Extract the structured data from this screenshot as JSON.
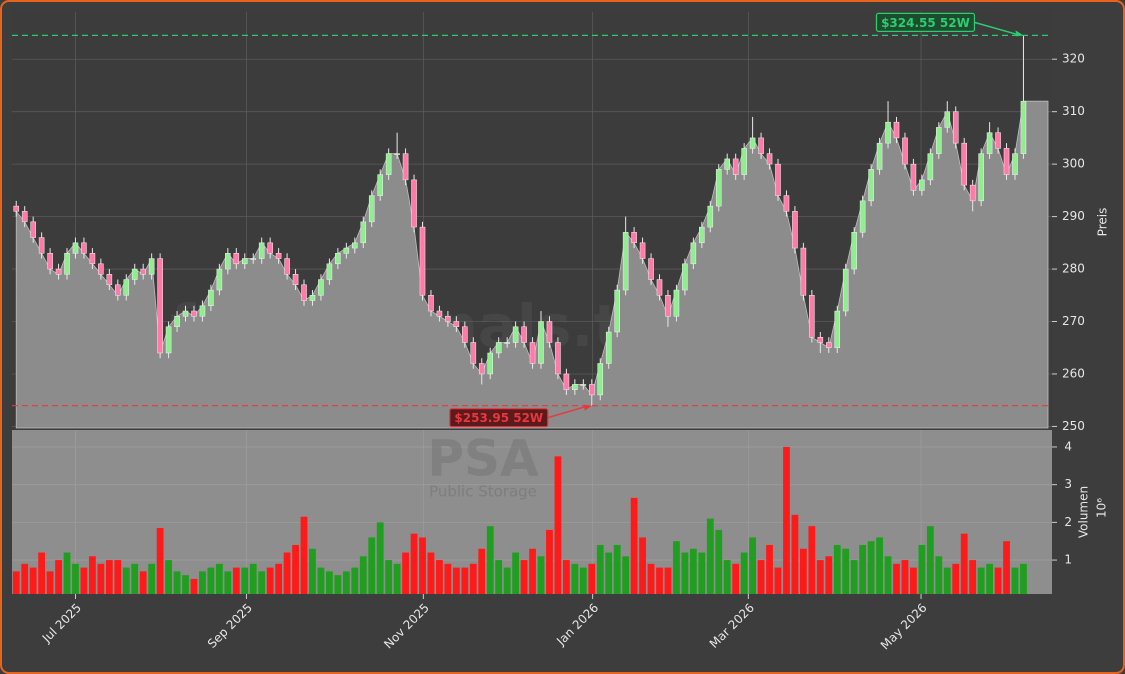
{
  "watermark": {
    "site": "forexsignals.trade",
    "ticker": "PSA",
    "company": "Public Storage"
  },
  "chart_data": [
    {
      "type": "candlestick",
      "y_label": "Preis",
      "up_color": "#90ee90",
      "down_color": "#ff7aa8",
      "area_color": "#8c8c8c",
      "xlim": [
        -0.5,
        121.9
      ],
      "xticks": [
        {
          "value": 7.0,
          "label": "Jul 2025"
        },
        {
          "value": 27.2,
          "label": "Sep 2025"
        },
        {
          "value": 48.1,
          "label": "Nov 2025"
        },
        {
          "value": 68.1,
          "label": "Jan 2026"
        },
        {
          "value": 86.5,
          "label": "Mar 2026"
        },
        {
          "value": 106.9,
          "label": "May 2026"
        }
      ],
      "ylim": [
        249.7,
        329
      ],
      "yticks": [
        250,
        260,
        270,
        280,
        290,
        300,
        310,
        320
      ],
      "grid": true,
      "open": [
        292,
        291,
        289,
        286,
        283,
        280,
        279,
        283,
        285,
        283,
        281,
        279,
        277,
        275,
        278,
        280,
        279,
        282,
        264,
        269,
        271,
        272,
        271,
        273,
        276,
        280,
        283,
        281,
        282,
        282,
        285,
        283,
        282,
        279,
        277,
        274,
        275,
        278,
        281,
        283,
        284,
        285,
        289,
        294,
        298,
        302,
        302,
        297,
        288,
        275,
        272,
        271,
        270,
        269,
        266,
        262,
        260,
        264,
        266,
        266,
        269,
        266,
        262,
        270,
        266,
        260,
        257,
        258,
        258,
        256,
        262,
        268,
        276,
        287,
        285,
        282,
        278,
        275,
        271,
        276,
        281,
        285,
        288,
        292,
        299,
        301,
        298,
        303,
        305,
        302,
        300,
        294,
        291,
        284,
        275,
        267,
        266,
        265,
        272,
        280,
        287,
        293,
        299,
        304,
        308,
        305,
        300,
        295,
        297,
        302,
        307,
        310,
        304,
        296,
        293,
        302,
        306,
        303,
        298,
        302
      ],
      "high": [
        293,
        292,
        290,
        287,
        284,
        281,
        284,
        286,
        286,
        284,
        282,
        280,
        278,
        279,
        281,
        281,
        283,
        283,
        270,
        272,
        273,
        273,
        274,
        277,
        281,
        284,
        284,
        283,
        283,
        286,
        286,
        284,
        283,
        280,
        278,
        276,
        279,
        282,
        284,
        285,
        286,
        290,
        295,
        299,
        303,
        306,
        303,
        298,
        289,
        276,
        273,
        272,
        271,
        270,
        267,
        263,
        265,
        267,
        267,
        270,
        270,
        267,
        272,
        271,
        267,
        261,
        259,
        259,
        259,
        263,
        269,
        277,
        290,
        288,
        286,
        283,
        279,
        276,
        277,
        282,
        286,
        289,
        293,
        300,
        302,
        302,
        304,
        309,
        306,
        303,
        301,
        295,
        292,
        285,
        276,
        268,
        267,
        273,
        281,
        288,
        294,
        300,
        305,
        312,
        309,
        306,
        301,
        298,
        303,
        308,
        312,
        311,
        305,
        297,
        303,
        308,
        307,
        304,
        303,
        324.55
      ],
      "low": [
        290,
        288,
        285,
        282,
        279,
        278,
        278,
        282,
        282,
        280,
        278,
        276,
        274,
        274,
        277,
        278,
        278,
        263,
        263,
        268,
        270,
        270,
        270,
        272,
        275,
        279,
        280,
        280,
        281,
        281,
        282,
        281,
        278,
        276,
        273,
        273,
        274,
        277,
        280,
        282,
        283,
        284,
        288,
        293,
        297,
        301,
        296,
        287,
        274,
        271,
        270,
        269,
        268,
        265,
        261,
        258,
        259,
        263,
        265,
        265,
        265,
        261,
        261,
        265,
        259,
        256,
        256,
        257,
        253.95,
        255,
        261,
        267,
        275,
        284,
        281,
        277,
        274,
        269,
        270,
        275,
        280,
        284,
        287,
        291,
        298,
        297,
        297,
        302,
        301,
        299,
        293,
        290,
        283,
        274,
        266,
        264,
        264,
        264,
        271,
        279,
        286,
        292,
        298,
        303,
        304,
        299,
        294,
        294,
        296,
        301,
        306,
        303,
        295,
        291,
        292,
        301,
        302,
        297,
        297,
        301
      ],
      "close": [
        291,
        289,
        286,
        283,
        280,
        279,
        283,
        285,
        283,
        281,
        279,
        277,
        275,
        278,
        280,
        279,
        282,
        264,
        269,
        271,
        272,
        271,
        273,
        276,
        280,
        283,
        281,
        282,
        282,
        285,
        283,
        282,
        279,
        277,
        274,
        275,
        278,
        281,
        283,
        284,
        285,
        289,
        294,
        298,
        302,
        302,
        297,
        288,
        275,
        272,
        271,
        270,
        269,
        266,
        262,
        260,
        264,
        266,
        266,
        269,
        266,
        262,
        270,
        266,
        260,
        257,
        258,
        258,
        256,
        262,
        268,
        276,
        287,
        285,
        282,
        278,
        275,
        271,
        276,
        281,
        285,
        288,
        292,
        299,
        301,
        298,
        303,
        305,
        302,
        300,
        294,
        291,
        284,
        275,
        267,
        266,
        265,
        272,
        280,
        287,
        293,
        299,
        304,
        308,
        305,
        300,
        295,
        297,
        302,
        307,
        310,
        304,
        296,
        293,
        302,
        306,
        303,
        298,
        302,
        312
      ],
      "annotations": [
        {
          "x": 119,
          "value": 324.55,
          "label": "$324.55 52W",
          "color": "#2ecc71"
        },
        {
          "x": 68,
          "value": 253.95,
          "label": "$253.95 52W",
          "color": "#e8383d"
        }
      ]
    },
    {
      "type": "bar",
      "y_label": "Volumen",
      "y_label_exponent": "10⁶",
      "up_color": "#1f9e1f",
      "down_color": "#ff1a1a",
      "xlim": [
        -0.5,
        121.9
      ],
      "ylim": [
        0.1,
        4.45
      ],
      "yticks": [
        1,
        2,
        3,
        4
      ],
      "values": [
        0.7,
        0.9,
        0.8,
        1.2,
        0.7,
        1.0,
        1.2,
        0.9,
        0.8,
        1.1,
        0.9,
        1.0,
        1.0,
        0.8,
        0.9,
        0.7,
        0.9,
        1.85,
        1.0,
        0.7,
        0.6,
        0.5,
        0.7,
        0.8,
        0.9,
        0.7,
        0.8,
        0.8,
        0.9,
        0.7,
        0.8,
        0.9,
        1.2,
        1.4,
        2.15,
        1.3,
        0.8,
        0.7,
        0.6,
        0.7,
        0.8,
        1.1,
        1.6,
        2.0,
        1.0,
        0.9,
        1.2,
        1.7,
        1.6,
        1.2,
        1.0,
        0.9,
        0.8,
        0.8,
        0.9,
        1.3,
        1.9,
        1.0,
        0.8,
        1.2,
        1.0,
        1.3,
        1.1,
        1.8,
        3.75,
        1.0,
        0.9,
        0.8,
        0.9,
        1.4,
        1.2,
        1.4,
        1.1,
        2.65,
        1.6,
        0.9,
        0.8,
        0.8,
        1.5,
        1.2,
        1.3,
        1.2,
        2.1,
        1.8,
        1.0,
        0.9,
        1.2,
        1.6,
        1.0,
        1.4,
        0.8,
        4.0,
        2.2,
        1.3,
        1.9,
        1.0,
        1.1,
        1.4,
        1.3,
        1.0,
        1.4,
        1.5,
        1.6,
        1.1,
        0.9,
        1.0,
        0.8,
        1.4,
        1.9,
        1.1,
        0.8,
        0.9,
        1.7,
        1.0,
        0.8,
        0.9,
        0.8,
        1.5,
        0.8,
        0.9
      ]
    }
  ]
}
